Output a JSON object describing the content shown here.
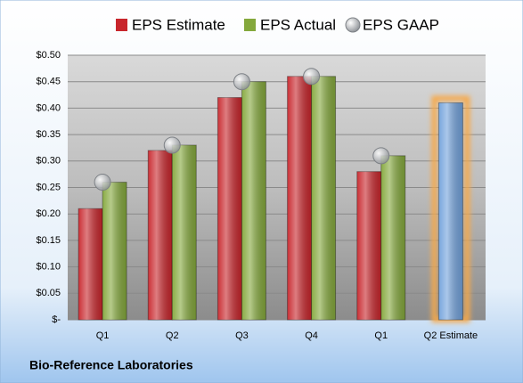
{
  "chart_data": {
    "type": "bar",
    "footer": "Bio-Reference Laboratories",
    "categories": [
      "Q1",
      "Q2",
      "Q3",
      "Q4",
      "Q1",
      "Q2 Estimate"
    ],
    "series": [
      {
        "name": "EPS Estimate",
        "type": "bar",
        "color": "#c8262c",
        "values": [
          0.21,
          0.32,
          0.42,
          0.46,
          0.28,
          0.41
        ],
        "colors": [
          "#c8262c",
          "#c8262c",
          "#c8262c",
          "#c8262c",
          "#c8262c",
          "#72a2dc"
        ],
        "glow": [
          null,
          null,
          null,
          null,
          null,
          "#f7a94a"
        ]
      },
      {
        "name": "EPS Actual",
        "type": "bar",
        "color": "#84a83c",
        "values": [
          0.26,
          0.33,
          0.45,
          0.46,
          0.31,
          null
        ]
      },
      {
        "name": "EPS GAAP",
        "type": "scatter",
        "color": "#b4b8be",
        "values": [
          0.26,
          0.33,
          0.45,
          0.46,
          0.31,
          null
        ]
      }
    ],
    "ylim": [
      0,
      0.5
    ],
    "yticks": [
      {
        "value": 0,
        "label": "$-"
      },
      {
        "value": 0.05,
        "label": "$0.05"
      },
      {
        "value": 0.1,
        "label": "$0.10"
      },
      {
        "value": 0.15,
        "label": "$0.15"
      },
      {
        "value": 0.2,
        "label": "$0.20"
      },
      {
        "value": 0.25,
        "label": "$0.25"
      },
      {
        "value": 0.3,
        "label": "$0.30"
      },
      {
        "value": 0.35,
        "label": "$0.35"
      },
      {
        "value": 0.4,
        "label": "$0.40"
      },
      {
        "value": 0.45,
        "label": "$0.45"
      },
      {
        "value": 0.5,
        "label": "$0.50"
      }
    ],
    "grid": true
  }
}
